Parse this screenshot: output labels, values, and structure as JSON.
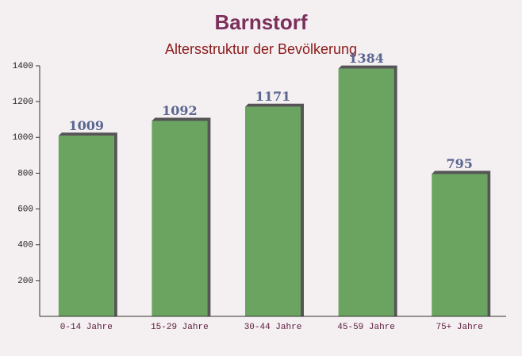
{
  "chart_data": {
    "type": "bar",
    "title": "Barnstorf",
    "subtitle": "Altersstruktur der Bevölkerung",
    "categories": [
      "0-14 Jahre",
      "15-29 Jahre",
      "30-44 Jahre",
      "45-59 Jahre",
      "75+ Jahre"
    ],
    "values": [
      1009,
      1092,
      1171,
      1384,
      795
    ],
    "color": "#6ba461",
    "ylim": [
      0,
      1400
    ],
    "yticks": [
      200,
      400,
      600,
      800,
      1000,
      1200,
      1400
    ]
  }
}
